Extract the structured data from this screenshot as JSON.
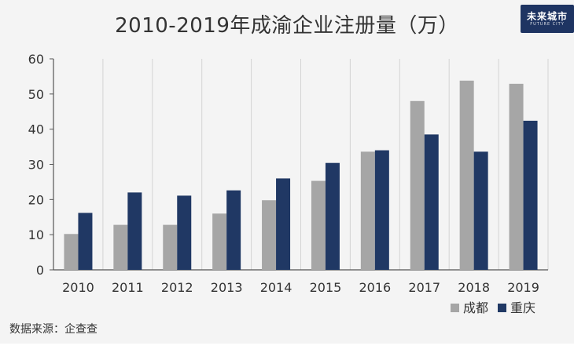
{
  "chart_data": {
    "type": "bar",
    "title": "2010-2019年成渝企业注册量（万）",
    "categories": [
      "2010",
      "2011",
      "2012",
      "2013",
      "2014",
      "2015",
      "2016",
      "2017",
      "2018",
      "2019"
    ],
    "series": [
      {
        "name": "成都",
        "color": "#a6a6a6",
        "values": [
          10.2,
          12.8,
          12.8,
          16.0,
          19.8,
          25.3,
          33.6,
          48.0,
          53.8,
          52.9
        ]
      },
      {
        "name": "重庆",
        "color": "#203864",
        "values": [
          16.2,
          22.0,
          21.1,
          22.6,
          26.0,
          30.4,
          34.0,
          38.5,
          33.6,
          42.4
        ]
      }
    ],
    "ylim": [
      0,
      60
    ],
    "yticks": [
      0,
      10,
      20,
      30,
      40,
      50,
      60
    ],
    "xlabel": "",
    "ylabel": "",
    "grid": "vertical",
    "legend": "bottom-right"
  },
  "logo": {
    "main": "未来城市",
    "sub": "FUTURE CITY"
  },
  "source": "数据来源：企查查"
}
